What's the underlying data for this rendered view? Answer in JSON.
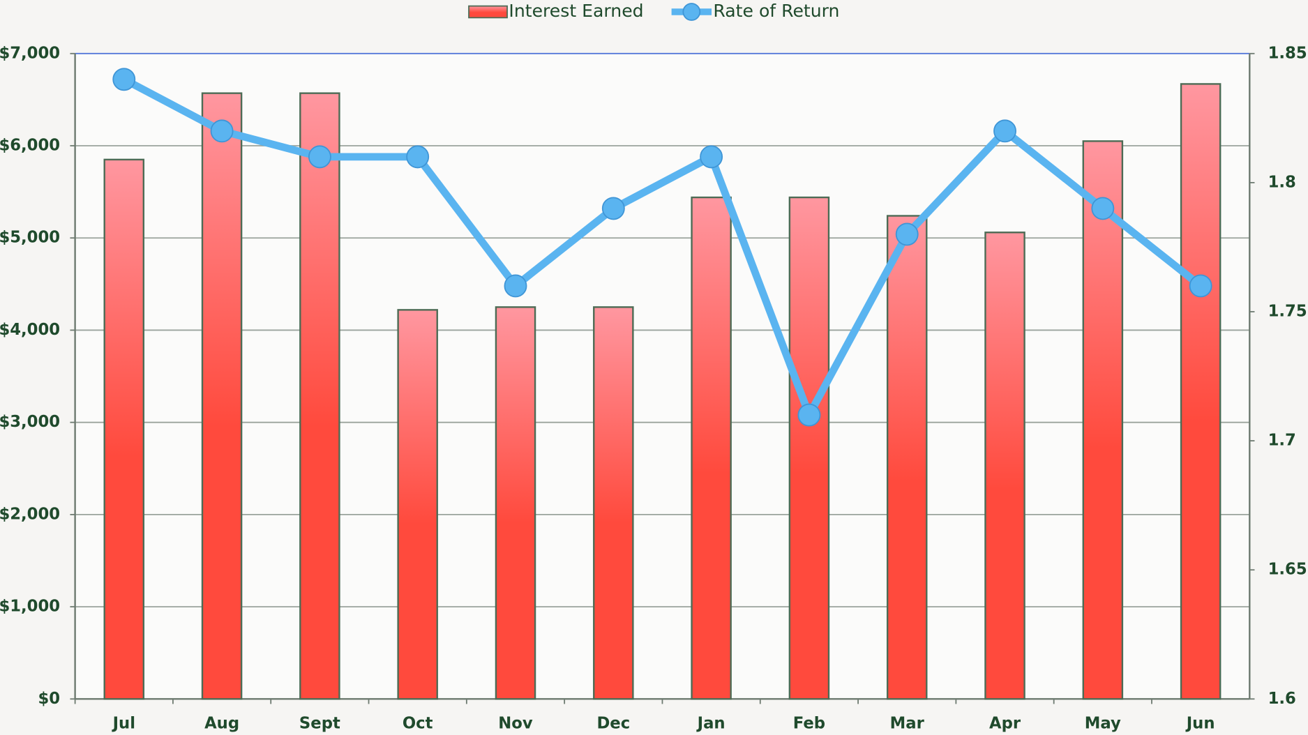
{
  "chart_data": {
    "type": "bar_line",
    "categories": [
      "Jul",
      "Aug",
      "Sept",
      "Oct",
      "Nov",
      "Dec",
      "Jan",
      "Feb",
      "Mar",
      "Apr",
      "May",
      "Jun"
    ],
    "series": [
      {
        "name": "Interest Earned",
        "type": "bar",
        "color": "#ff4a3d",
        "values": [
          5850,
          6570,
          6570,
          4220,
          4250,
          4250,
          5440,
          5440,
          5240,
          5060,
          6050,
          6670
        ]
      },
      {
        "name": "Rate of Return",
        "type": "line",
        "axis": "y2",
        "color": "#5ab4f0",
        "values": [
          1.84,
          1.82,
          1.81,
          1.81,
          1.76,
          1.79,
          1.81,
          1.71,
          1.78,
          1.82,
          1.79,
          1.76
        ]
      }
    ],
    "ylim": [
      0,
      7000
    ],
    "yticks": [
      {
        "value": 0,
        "label": "$0"
      },
      {
        "value": 1000,
        "label": "$1,000"
      },
      {
        "value": 2000,
        "label": "$2,000"
      },
      {
        "value": 3000,
        "label": "$3,000"
      },
      {
        "value": 4000,
        "label": "$4,000"
      },
      {
        "value": 5000,
        "label": "$5,000"
      },
      {
        "value": 6000,
        "label": "$6,000"
      },
      {
        "value": 7000,
        "label": "$7,000"
      }
    ],
    "y2lim": [
      1.6,
      1.85
    ],
    "y2ticks": [
      1.6,
      1.65,
      1.7,
      1.75,
      1.8,
      1.85
    ],
    "grid": true,
    "legend": "top"
  }
}
